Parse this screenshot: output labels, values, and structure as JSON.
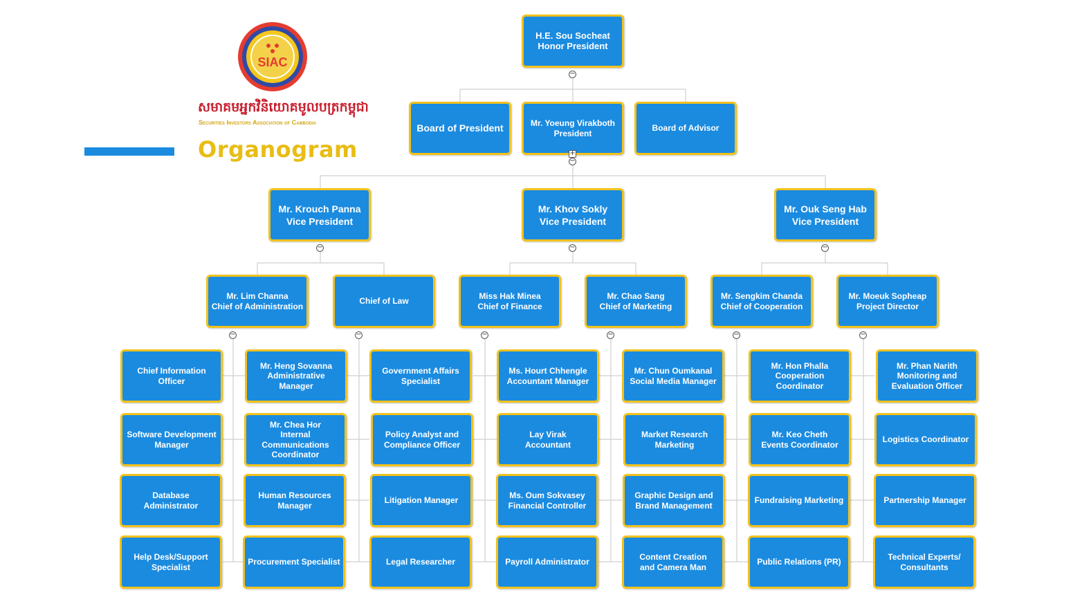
{
  "brand": {
    "logo_text": "SIAC",
    "name_khmer": "សមាគមអ្នកវិនិយោគមូលបត្រកម្ពុជា",
    "name_english": "Securities Investors Association of Cambodia",
    "title": "Organogram",
    "colors": {
      "node_fill": "#1b8be0",
      "node_border": "#f2c21b",
      "title": "#e8bd14",
      "khmer_text": "#c8202e",
      "bar": "#1b8be0"
    }
  },
  "nodes": {
    "honor": [
      "H.E. Sou Socheat",
      "Honor President"
    ],
    "board_president": [
      "Board of President"
    ],
    "president": [
      "Mr. Yoeung Virakboth",
      "President"
    ],
    "board_advisor": [
      "Board of Advisor"
    ],
    "vp1": [
      "Mr. Krouch Panna",
      "Vice President"
    ],
    "vp2": [
      "Mr. Khov Sokly",
      "Vice President"
    ],
    "vp3": [
      "Mr. Ouk Seng Hab",
      "Vice President"
    ],
    "admin": [
      "Mr. Lim Channa",
      "Chief of Administration"
    ],
    "law": [
      "Chief of Law"
    ],
    "finance": [
      "Miss Hak Minea",
      "Chief of Finance"
    ],
    "marketing": [
      "Mr. Chao Sang",
      "Chief of Marketing"
    ],
    "cooperation": [
      "Mr. Sengkim Chanda",
      "Chief of Cooperation"
    ],
    "project": [
      "Mr. Moeuk Sopheap",
      "Project Director"
    ],
    "a1": [
      "Chief Information",
      "Officer"
    ],
    "a2": [
      "Software Development",
      "Manager"
    ],
    "a3": [
      "Database",
      "Administrator"
    ],
    "a4": [
      "Help Desk/Support",
      "Specialist"
    ],
    "b1": [
      "Mr. Heng Sovanna",
      "Administrative",
      "Manager"
    ],
    "b2": [
      "Mr. Chea Hor",
      "Internal",
      "Communications",
      "Coordinator"
    ],
    "b3": [
      "Human Resources",
      "Manager"
    ],
    "b4": [
      "Procurement Specialist"
    ],
    "c1": [
      "Government Affairs",
      "Specialist"
    ],
    "c2": [
      "Policy Analyst and",
      "Compliance Officer"
    ],
    "c3": [
      "Litigation Manager"
    ],
    "c4": [
      "Legal Researcher"
    ],
    "d1": [
      "Ms. Hourt Chhengle",
      "Accountant Manager"
    ],
    "d2": [
      "Lay Virak",
      "Accountant"
    ],
    "d3": [
      "Ms. Oum Sokvasey",
      "Financial Controller"
    ],
    "d4": [
      "Payroll Administrator"
    ],
    "e1": [
      "Mr. Chun Oumkanal",
      "Social Media Manager"
    ],
    "e2": [
      "Market Research",
      "Marketing"
    ],
    "e3": [
      "Graphic Design and",
      "Brand Management"
    ],
    "e4": [
      "Content Creation",
      "and Camera Man"
    ],
    "f1": [
      "Mr. Hon Phalla",
      "Cooperation",
      "Coordinator"
    ],
    "f2": [
      "Mr. Keo Cheth",
      "Events Coordinator"
    ],
    "f3": [
      "Fundraising Marketing"
    ],
    "f4": [
      "Public Relations (PR)"
    ],
    "g1": [
      "Mr. Phan Narith",
      "Monitoring and",
      "Evaluation Officer"
    ],
    "g2": [
      "Logistics Coordinator"
    ],
    "g3": [
      "Partnership Manager"
    ],
    "g4": [
      "Technical Experts/",
      "Consultants"
    ]
  },
  "toggles": {
    "collapse": "−",
    "expand": "+"
  }
}
